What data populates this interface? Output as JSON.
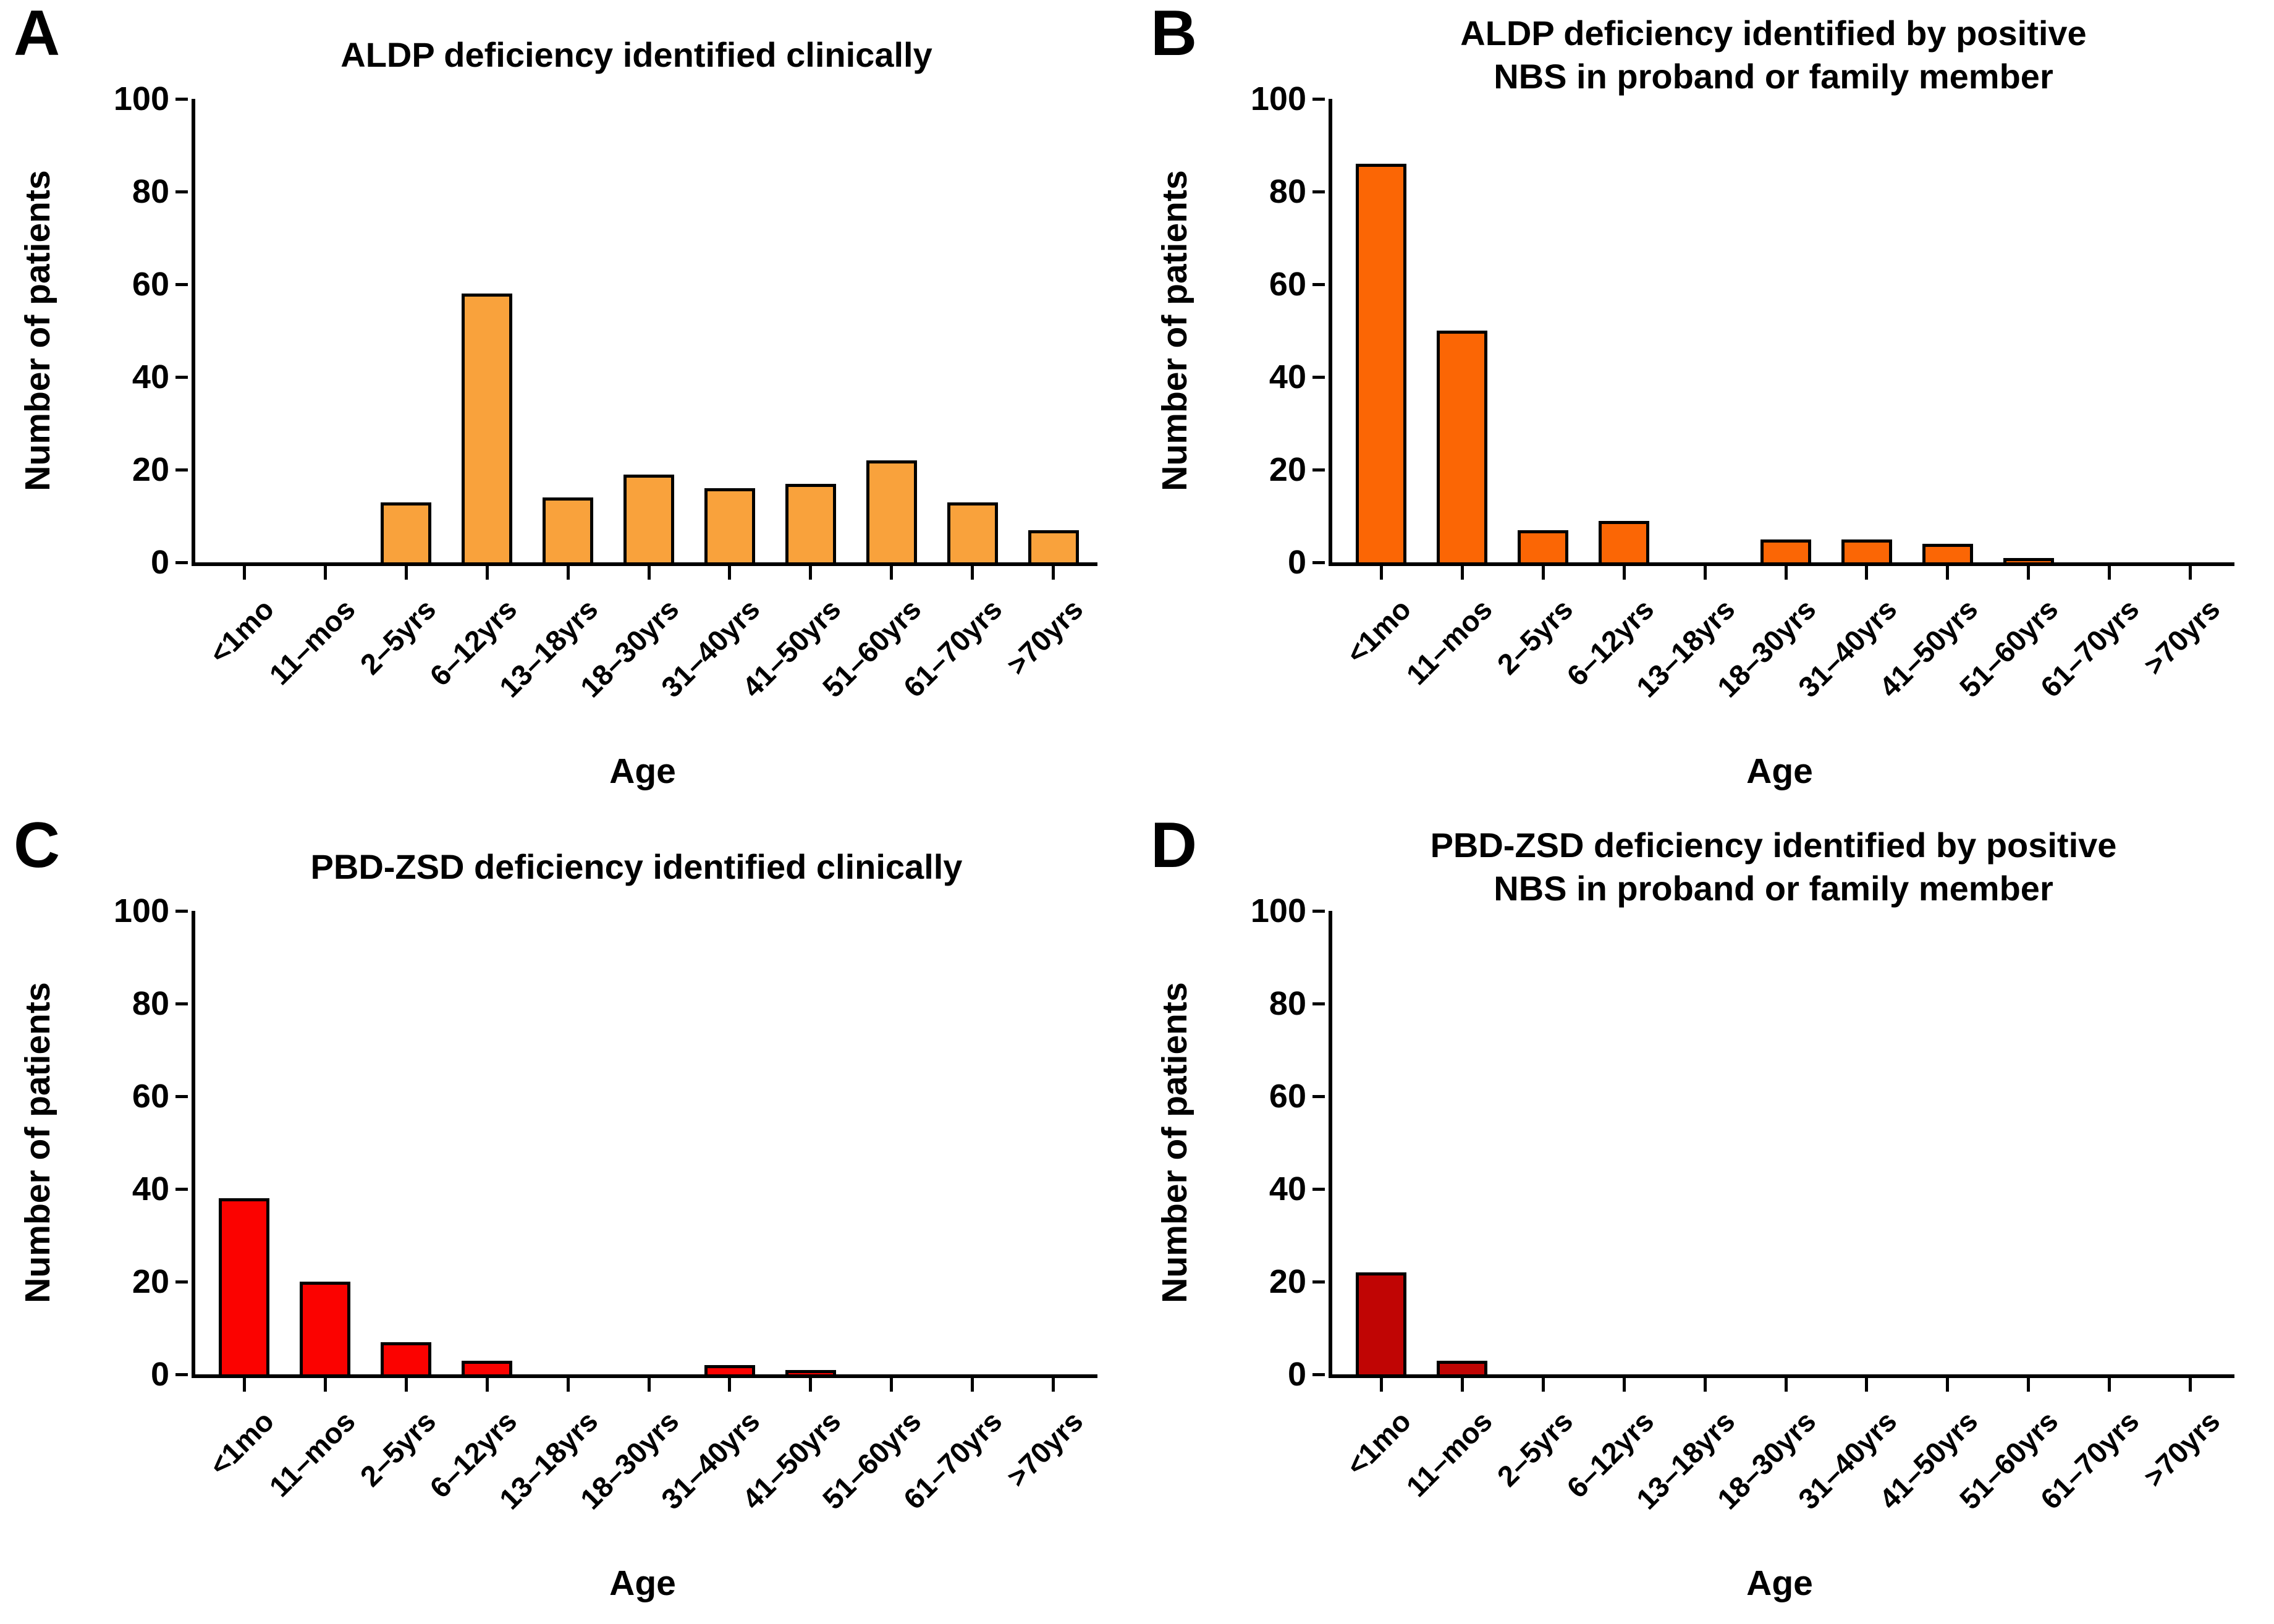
{
  "chart_data": [
    {
      "type": "bar",
      "panel_letter": "A",
      "title_lines": [
        "ALDP deficiency identified clinically"
      ],
      "categories": [
        "<1mo",
        "11–mos",
        "2–5yrs",
        "6–12yrs",
        "13–18yrs",
        "18–30yrs",
        "31–40yrs",
        "41–50yrs",
        "51–60yrs",
        "61–70yrs",
        ">70yrs"
      ],
      "values": [
        0,
        0,
        13,
        58,
        14,
        19,
        16,
        17,
        22,
        13,
        7
      ],
      "bar_color": "#F9A23C",
      "xlabel": "Age",
      "ylabel": "Number of patients",
      "ylim": [
        0,
        100
      ],
      "y_ticks": [
        0,
        20,
        40,
        60,
        80,
        100
      ],
      "grid": false,
      "legend": "none"
    },
    {
      "type": "bar",
      "panel_letter": "B",
      "title_lines": [
        "ALDP deficiency identified by positive",
        "NBS in proband or family member"
      ],
      "categories": [
        "<1mo",
        "11–mos",
        "2–5yrs",
        "6–12yrs",
        "13–18yrs",
        "18–30yrs",
        "31–40yrs",
        "41–50yrs",
        "51–60yrs",
        "61–70yrs",
        ">70yrs"
      ],
      "values": [
        86,
        50,
        7,
        9,
        0,
        5,
        5,
        4,
        1,
        0,
        0
      ],
      "bar_color": "#FB6605",
      "xlabel": "Age",
      "ylabel": "Number of patients",
      "ylim": [
        0,
        100
      ],
      "y_ticks": [
        0,
        20,
        40,
        60,
        80,
        100
      ],
      "grid": false,
      "legend": "none"
    },
    {
      "type": "bar",
      "panel_letter": "C",
      "title_lines": [
        "PBD-ZSD deficiency identified clinically"
      ],
      "categories": [
        "<1mo",
        "11–mos",
        "2–5yrs",
        "6–12yrs",
        "13–18yrs",
        "18–30yrs",
        "31–40yrs",
        "41–50yrs",
        "51–60yrs",
        "61–70yrs",
        ">70yrs"
      ],
      "values": [
        38,
        20,
        7,
        3,
        0,
        0,
        2,
        1,
        0,
        0,
        0
      ],
      "bar_color": "#FB0200",
      "xlabel": "Age",
      "ylabel": "Number of patients",
      "ylim": [
        0,
        100
      ],
      "y_ticks": [
        0,
        20,
        40,
        60,
        80,
        100
      ],
      "grid": false,
      "legend": "none"
    },
    {
      "type": "bar",
      "panel_letter": "D",
      "title_lines": [
        "PBD-ZSD deficiency identified by positive",
        "NBS in proband or family member"
      ],
      "categories": [
        "<1mo",
        "11–mos",
        "2–5yrs",
        "6–12yrs",
        "13–18yrs",
        "18–30yrs",
        "31–40yrs",
        "41–50yrs",
        "51–60yrs",
        "61–70yrs",
        ">70yrs"
      ],
      "values": [
        22,
        3,
        0,
        0,
        0,
        0,
        0,
        0,
        0,
        0,
        0
      ],
      "bar_color": "#C00504",
      "xlabel": "Age",
      "ylabel": "Number of patients",
      "ylim": [
        0,
        100
      ],
      "y_ticks": [
        0,
        20,
        40,
        60,
        80,
        100
      ],
      "grid": false,
      "legend": "none"
    }
  ]
}
